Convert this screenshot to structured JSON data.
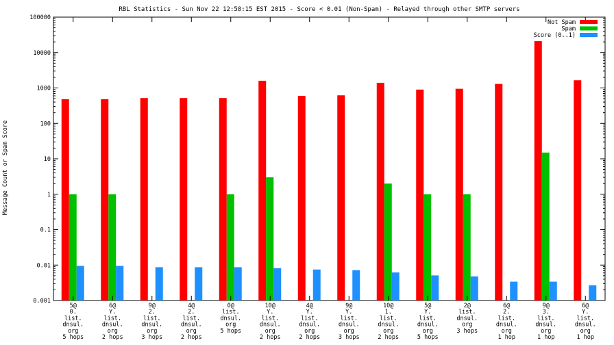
{
  "chart_data": {
    "type": "bar",
    "title": "RBL Statistics - Sun Nov 22 12:58:15 EST 2015 - Score < 0.01 (Non-Spam) - Relayed through other SMTP servers",
    "xlabel": "",
    "ylabel": "Message Count or Spam Score",
    "yscale": "log",
    "ylim": [
      0.001,
      100000
    ],
    "yticks": [
      "0.001",
      "0.01",
      "0.1",
      "1",
      "10",
      "100",
      "1000",
      "10000",
      "100000"
    ],
    "ytick_values": [
      0.001,
      0.01,
      0.1,
      1,
      10,
      100,
      1000,
      10000,
      100000
    ],
    "legend_position": "top-right",
    "categories": [
      [
        "5@",
        "0.",
        "list.",
        "dnsul.",
        "org",
        "5 hops"
      ],
      [
        "6@",
        "Y.",
        "list.",
        "dnsul.",
        "org",
        "2 hops"
      ],
      [
        "9@",
        "2.",
        "list.",
        "dnsul.",
        "org",
        "3 hops"
      ],
      [
        "4@",
        "2.",
        "list.",
        "dnsul.",
        "org",
        "2 hops"
      ],
      [
        "0@",
        "list.",
        "dnsul.",
        "org",
        "5 hops"
      ],
      [
        "10@",
        "Y.",
        "list.",
        "dnsul.",
        "org",
        "2 hops"
      ],
      [
        "4@",
        "Y.",
        "list.",
        "dnsul.",
        "org",
        "2 hops"
      ],
      [
        "9@",
        "Y.",
        "list.",
        "dnsul.",
        "org",
        "3 hops"
      ],
      [
        "10@",
        "1.",
        "list.",
        "dnsul.",
        "org",
        "2 hops"
      ],
      [
        "5@",
        "Y.",
        "list.",
        "dnsul.",
        "org",
        "5 hops"
      ],
      [
        "2@",
        "list.",
        "dnsul.",
        "org",
        "3 hops"
      ],
      [
        "6@",
        "2.",
        "list.",
        "dnsul.",
        "org",
        "1 hop"
      ],
      [
        "9@",
        "3.",
        "list.",
        "dnsul.",
        "org",
        "1 hop"
      ],
      [
        "6@",
        "Y.",
        "list.",
        "dnsul.",
        "org",
        "1 hop"
      ]
    ],
    "series": [
      {
        "name": "Not Spam",
        "color": "#ff0000",
        "values": [
          480,
          480,
          520,
          520,
          520,
          1600,
          600,
          620,
          1400,
          900,
          950,
          1300,
          21000,
          1650
        ]
      },
      {
        "name": "Spam",
        "color": "#00c000",
        "values": [
          1,
          1,
          null,
          null,
          1,
          3,
          null,
          null,
          2,
          1,
          1,
          null,
          15,
          null
        ]
      },
      {
        "name": "Score (0..1)",
        "color": "#1e90ff",
        "values": [
          0.0095,
          0.0095,
          0.0087,
          0.0087,
          0.0087,
          0.0082,
          0.0075,
          0.0072,
          0.0062,
          0.0051,
          0.0048,
          0.0034,
          0.0034,
          0.0027
        ]
      }
    ]
  }
}
